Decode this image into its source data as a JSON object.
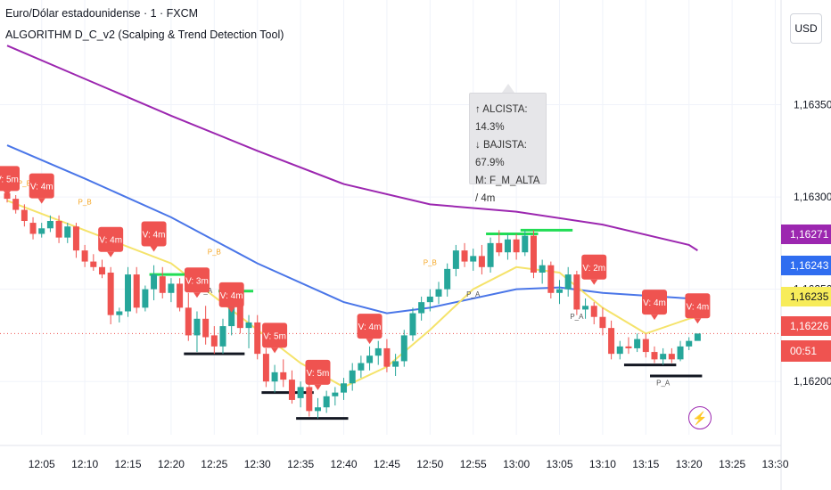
{
  "header": {
    "symbol_title": "Euro/Dólar estadounidense · 1 · FXCM",
    "indicator_title": "ALGORITHM D_C_v2 (Scalping & Trend Detection Tool)",
    "currency_button": "USD"
  },
  "tooltip": {
    "line1": "↑ ALCISTA: 14.3%",
    "line2": "↓ BAJISTA: 67.9%",
    "line3": "M: F_M_ALTA / 4m"
  },
  "chart_data": {
    "type": "candlestick",
    "symbol": "EUR/USD",
    "timeframe": "1",
    "x_ticks": [
      "12:05",
      "12:10",
      "12:15",
      "12:20",
      "12:25",
      "12:30",
      "12:35",
      "12:40",
      "12:45",
      "12:50",
      "12:55",
      "13:00",
      "13:05",
      "13:10",
      "13:15",
      "13:20",
      "13:25",
      "13:30"
    ],
    "y_ticks": [
      "1,16350",
      "1,16300",
      "1,16250",
      "1,16200"
    ],
    "ylim": [
      1.16175,
      1.16385
    ],
    "candles": [
      {
        "t": "12:01",
        "o": 1.16302,
        "h": 1.16306,
        "l": 1.16297,
        "c": 1.16299
      },
      {
        "t": "12:02",
        "o": 1.16299,
        "h": 1.16301,
        "l": 1.16291,
        "c": 1.16293
      },
      {
        "t": "12:03",
        "o": 1.16293,
        "h": 1.16296,
        "l": 1.16284,
        "c": 1.16287
      },
      {
        "t": "12:04",
        "o": 1.16286,
        "h": 1.16289,
        "l": 1.16277,
        "c": 1.1628
      },
      {
        "t": "12:05",
        "o": 1.1628,
        "h": 1.16286,
        "l": 1.16278,
        "c": 1.16283
      },
      {
        "t": "12:06",
        "o": 1.16283,
        "h": 1.1629,
        "l": 1.16281,
        "c": 1.16287
      },
      {
        "t": "12:07",
        "o": 1.16287,
        "h": 1.1629,
        "l": 1.16275,
        "c": 1.16278
      },
      {
        "t": "12:08",
        "o": 1.16278,
        "h": 1.16286,
        "l": 1.16275,
        "c": 1.16284
      },
      {
        "t": "12:09",
        "o": 1.16284,
        "h": 1.16286,
        "l": 1.16267,
        "c": 1.16271
      },
      {
        "t": "12:10",
        "o": 1.16271,
        "h": 1.16274,
        "l": 1.16262,
        "c": 1.16265
      },
      {
        "t": "12:11",
        "o": 1.16265,
        "h": 1.16269,
        "l": 1.1626,
        "c": 1.16262
      },
      {
        "t": "12:12",
        "o": 1.16262,
        "h": 1.16266,
        "l": 1.16256,
        "c": 1.16258
      },
      {
        "t": "12:13",
        "o": 1.16259,
        "h": 1.16262,
        "l": 1.16231,
        "c": 1.16236
      },
      {
        "t": "12:14",
        "o": 1.16236,
        "h": 1.1624,
        "l": 1.16232,
        "c": 1.16238
      },
      {
        "t": "12:15",
        "o": 1.16238,
        "h": 1.16262,
        "l": 1.16235,
        "c": 1.16258
      },
      {
        "t": "12:16",
        "o": 1.16258,
        "h": 1.16262,
        "l": 1.16237,
        "c": 1.1624
      },
      {
        "t": "12:17",
        "o": 1.1624,
        "h": 1.16252,
        "l": 1.16238,
        "c": 1.1625
      },
      {
        "t": "12:18",
        "o": 1.1625,
        "h": 1.16263,
        "l": 1.16244,
        "c": 1.16258
      },
      {
        "t": "12:19",
        "o": 1.16257,
        "h": 1.16262,
        "l": 1.16245,
        "c": 1.16248
      },
      {
        "t": "12:20",
        "o": 1.16248,
        "h": 1.16256,
        "l": 1.16243,
        "c": 1.16253
      },
      {
        "t": "12:21",
        "o": 1.16253,
        "h": 1.16256,
        "l": 1.16238,
        "c": 1.1624
      },
      {
        "t": "12:22",
        "o": 1.1624,
        "h": 1.16248,
        "l": 1.16222,
        "c": 1.16225
      },
      {
        "t": "12:23",
        "o": 1.16225,
        "h": 1.16238,
        "l": 1.16216,
        "c": 1.16234
      },
      {
        "t": "12:24",
        "o": 1.16234,
        "h": 1.16241,
        "l": 1.1622,
        "c": 1.16224
      },
      {
        "t": "12:25",
        "o": 1.16225,
        "h": 1.1623,
        "l": 1.16215,
        "c": 1.16219
      },
      {
        "t": "12:26",
        "o": 1.16219,
        "h": 1.16234,
        "l": 1.16215,
        "c": 1.1623
      },
      {
        "t": "12:27",
        "o": 1.1623,
        "h": 1.16248,
        "l": 1.16225,
        "c": 1.16245
      },
      {
        "t": "12:28",
        "o": 1.16245,
        "h": 1.16249,
        "l": 1.16226,
        "c": 1.16229
      },
      {
        "t": "12:29",
        "o": 1.16229,
        "h": 1.16236,
        "l": 1.16218,
        "c": 1.16232
      },
      {
        "t": "12:30",
        "o": 1.16232,
        "h": 1.16236,
        "l": 1.16212,
        "c": 1.16215
      },
      {
        "t": "12:31",
        "o": 1.16215,
        "h": 1.16218,
        "l": 1.16197,
        "c": 1.162
      },
      {
        "t": "12:32",
        "o": 1.162,
        "h": 1.16209,
        "l": 1.16194,
        "c": 1.16205
      },
      {
        "t": "12:33",
        "o": 1.16205,
        "h": 1.16212,
        "l": 1.16197,
        "c": 1.16201
      },
      {
        "t": "12:34",
        "o": 1.16201,
        "h": 1.16206,
        "l": 1.16188,
        "c": 1.1619
      },
      {
        "t": "12:35",
        "o": 1.16191,
        "h": 1.162,
        "l": 1.16186,
        "c": 1.16197
      },
      {
        "t": "12:36",
        "o": 1.16197,
        "h": 1.16199,
        "l": 1.16181,
        "c": 1.16184
      },
      {
        "t": "12:37",
        "o": 1.16184,
        "h": 1.16191,
        "l": 1.1618,
        "c": 1.16186
      },
      {
        "t": "12:38",
        "o": 1.16186,
        "h": 1.16195,
        "l": 1.16183,
        "c": 1.16192
      },
      {
        "t": "12:39",
        "o": 1.16192,
        "h": 1.16197,
        "l": 1.16187,
        "c": 1.16194
      },
      {
        "t": "12:40",
        "o": 1.16194,
        "h": 1.16202,
        "l": 1.1619,
        "c": 1.16199
      },
      {
        "t": "12:41",
        "o": 1.16199,
        "h": 1.1621,
        "l": 1.16195,
        "c": 1.16206
      },
      {
        "t": "12:42",
        "o": 1.16206,
        "h": 1.16214,
        "l": 1.16202,
        "c": 1.1621
      },
      {
        "t": "12:43",
        "o": 1.1621,
        "h": 1.16219,
        "l": 1.16206,
        "c": 1.16214
      },
      {
        "t": "12:44",
        "o": 1.16214,
        "h": 1.16222,
        "l": 1.16209,
        "c": 1.16218
      },
      {
        "t": "12:45",
        "o": 1.16218,
        "h": 1.16223,
        "l": 1.16205,
        "c": 1.16208
      },
      {
        "t": "12:46",
        "o": 1.16208,
        "h": 1.16215,
        "l": 1.16203,
        "c": 1.16211
      },
      {
        "t": "12:47",
        "o": 1.16211,
        "h": 1.16228,
        "l": 1.16208,
        "c": 1.16225
      },
      {
        "t": "12:48",
        "o": 1.16225,
        "h": 1.1624,
        "l": 1.16222,
        "c": 1.16237
      },
      {
        "t": "12:49",
        "o": 1.16237,
        "h": 1.16246,
        "l": 1.16233,
        "c": 1.16243
      },
      {
        "t": "12:50",
        "o": 1.16243,
        "h": 1.1625,
        "l": 1.16238,
        "c": 1.16246
      },
      {
        "t": "12:51",
        "o": 1.16246,
        "h": 1.16254,
        "l": 1.16242,
        "c": 1.1625
      },
      {
        "t": "12:52",
        "o": 1.1625,
        "h": 1.16264,
        "l": 1.16246,
        "c": 1.16261
      },
      {
        "t": "12:53",
        "o": 1.16261,
        "h": 1.16274,
        "l": 1.16257,
        "c": 1.16271
      },
      {
        "t": "12:54",
        "o": 1.16271,
        "h": 1.16275,
        "l": 1.16262,
        "c": 1.16265
      },
      {
        "t": "12:55",
        "o": 1.16265,
        "h": 1.16272,
        "l": 1.1626,
        "c": 1.16268
      },
      {
        "t": "12:56",
        "o": 1.16268,
        "h": 1.16274,
        "l": 1.16258,
        "c": 1.16262
      },
      {
        "t": "12:57",
        "o": 1.16262,
        "h": 1.16278,
        "l": 1.16259,
        "c": 1.16275
      },
      {
        "t": "12:58",
        "o": 1.16275,
        "h": 1.16282,
        "l": 1.16268,
        "c": 1.1627
      },
      {
        "t": "12:59",
        "o": 1.1627,
        "h": 1.1628,
        "l": 1.16266,
        "c": 1.16277
      },
      {
        "t": "13:00",
        "o": 1.16277,
        "h": 1.1628,
        "l": 1.16266,
        "c": 1.1627
      },
      {
        "t": "13:01",
        "o": 1.1627,
        "h": 1.16282,
        "l": 1.16268,
        "c": 1.16279
      },
      {
        "t": "13:02",
        "o": 1.16279,
        "h": 1.16282,
        "l": 1.16256,
        "c": 1.16259
      },
      {
        "t": "13:03",
        "o": 1.16259,
        "h": 1.16266,
        "l": 1.16253,
        "c": 1.16263
      },
      {
        "t": "13:04",
        "o": 1.16263,
        "h": 1.16265,
        "l": 1.16245,
        "c": 1.16248
      },
      {
        "t": "13:05",
        "o": 1.16248,
        "h": 1.16255,
        "l": 1.16242,
        "c": 1.1625
      },
      {
        "t": "13:06",
        "o": 1.1625,
        "h": 1.16262,
        "l": 1.16246,
        "c": 1.16258
      },
      {
        "t": "13:07",
        "o": 1.16258,
        "h": 1.1626,
        "l": 1.16236,
        "c": 1.16239
      },
      {
        "t": "13:08",
        "o": 1.16239,
        "h": 1.16245,
        "l": 1.16234,
        "c": 1.16241
      },
      {
        "t": "13:09",
        "o": 1.16241,
        "h": 1.16243,
        "l": 1.16231,
        "c": 1.16235
      },
      {
        "t": "13:10",
        "o": 1.16235,
        "h": 1.1624,
        "l": 1.16225,
        "c": 1.16229
      },
      {
        "t": "13:11",
        "o": 1.16229,
        "h": 1.16233,
        "l": 1.16212,
        "c": 1.16215
      },
      {
        "t": "13:12",
        "o": 1.16215,
        "h": 1.16222,
        "l": 1.16212,
        "c": 1.16219
      },
      {
        "t": "13:13",
        "o": 1.16219,
        "h": 1.16224,
        "l": 1.16215,
        "c": 1.16218
      },
      {
        "t": "13:14",
        "o": 1.16218,
        "h": 1.16226,
        "l": 1.16216,
        "c": 1.16223
      },
      {
        "t": "13:15",
        "o": 1.16223,
        "h": 1.16226,
        "l": 1.16213,
        "c": 1.16216
      },
      {
        "t": "13:16",
        "o": 1.16216,
        "h": 1.16219,
        "l": 1.1621,
        "c": 1.16212
      },
      {
        "t": "13:17",
        "o": 1.16212,
        "h": 1.16218,
        "l": 1.16209,
        "c": 1.16215
      },
      {
        "t": "13:18",
        "o": 1.16215,
        "h": 1.16218,
        "l": 1.1621,
        "c": 1.16212
      },
      {
        "t": "13:19",
        "o": 1.16212,
        "h": 1.16222,
        "l": 1.16211,
        "c": 1.16219
      },
      {
        "t": "13:20",
        "o": 1.16219,
        "h": 1.16224,
        "l": 1.16217,
        "c": 1.16222
      },
      {
        "t": "13:21",
        "o": 1.16222,
        "h": 1.16224,
        "l": 1.16224,
        "c": 1.16226
      }
    ],
    "lines": [
      {
        "color": "#9c27b0",
        "points": [
          [
            "12:01",
            1.16382
          ],
          [
            "12:10",
            1.16364
          ],
          [
            "12:20",
            1.16344
          ],
          [
            "12:30",
            1.16325
          ],
          [
            "12:40",
            1.16307
          ],
          [
            "12:50",
            1.16296
          ],
          [
            "13:00",
            1.16292
          ],
          [
            "13:10",
            1.16285
          ],
          [
            "13:20",
            1.16274
          ],
          [
            "13:21",
            1.16271
          ]
        ]
      },
      {
        "color": "#4a76e8",
        "points": [
          [
            "12:01",
            1.16328
          ],
          [
            "12:10",
            1.1631
          ],
          [
            "12:20",
            1.16289
          ],
          [
            "12:30",
            1.16264
          ],
          [
            "12:40",
            1.16243
          ],
          [
            "12:45",
            1.16237
          ],
          [
            "12:50",
            1.1624
          ],
          [
            "13:00",
            1.1625
          ],
          [
            "13:05",
            1.16251
          ],
          [
            "13:10",
            1.16248
          ],
          [
            "13:20",
            1.16245
          ],
          [
            "13:21",
            1.16243
          ]
        ]
      },
      {
        "color": "#f5e36b",
        "points": [
          [
            "12:01",
            1.16298
          ],
          [
            "12:10",
            1.16282
          ],
          [
            "12:20",
            1.16264
          ],
          [
            "12:25",
            1.16246
          ],
          [
            "12:30",
            1.16228
          ],
          [
            "12:35",
            1.1621
          ],
          [
            "12:40",
            1.16197
          ],
          [
            "12:45",
            1.16208
          ],
          [
            "12:50",
            1.16228
          ],
          [
            "12:55",
            1.1625
          ],
          [
            "13:00",
            1.16262
          ],
          [
            "13:05",
            1.16259
          ],
          [
            "13:10",
            1.1624
          ],
          [
            "13:15",
            1.16226
          ],
          [
            "13:20",
            1.16234
          ],
          [
            "13:21",
            1.16235
          ]
        ]
      }
    ],
    "signal_labels": [
      {
        "t": "12:01",
        "y": 1.1631,
        "text": "V: 5m"
      },
      {
        "t": "12:05",
        "y": 1.16306,
        "text": "V: 4m"
      },
      {
        "t": "12:13",
        "y": 1.16277,
        "text": "V: 4m"
      },
      {
        "t": "12:18",
        "y": 1.1628,
        "text": "V: 4m"
      },
      {
        "t": "12:23",
        "y": 1.16255,
        "text": "V: 3m"
      },
      {
        "t": "12:27",
        "y": 1.16247,
        "text": "V: 4m"
      },
      {
        "t": "12:32",
        "y": 1.16225,
        "text": "V: 5m"
      },
      {
        "t": "12:37",
        "y": 1.16205,
        "text": "V: 5m"
      },
      {
        "t": "12:43",
        "y": 1.1623,
        "text": "V: 4m"
      },
      {
        "t": "13:09",
        "y": 1.16262,
        "text": "V: 2m"
      },
      {
        "t": "13:16",
        "y": 1.16243,
        "text": "V: 4m"
      },
      {
        "t": "13:21",
        "y": 1.16241,
        "text": "V: 4m"
      }
    ],
    "small_labels": [
      {
        "t": "12:03",
        "y": 1.16306,
        "text": "P_B",
        "color": "#f5a623"
      },
      {
        "t": "12:10",
        "y": 1.16296,
        "text": "P_B",
        "color": "#f5a623"
      },
      {
        "t": "12:25",
        "y": 1.16269,
        "text": "P_B",
        "color": "#f5a623"
      },
      {
        "t": "12:24",
        "y": 1.16248,
        "text": "P_A",
        "color": "#555555"
      },
      {
        "t": "12:50",
        "y": 1.16263,
        "text": "P_B",
        "color": "#f5a623"
      },
      {
        "t": "12:55",
        "y": 1.16246,
        "text": "P_A",
        "color": "#555555"
      },
      {
        "t": "13:07",
        "y": 1.16234,
        "text": "P_A",
        "color": "#555555"
      },
      {
        "t": "13:17",
        "y": 1.16198,
        "text": "P_A",
        "color": "#555555"
      }
    ],
    "h_levels": [
      {
        "t1": "12:18",
        "t2": "12:22",
        "y": 1.16258,
        "color": "#22dd55"
      },
      {
        "t1": "12:26",
        "t2": "12:29",
        "y": 1.16249,
        "color": "#22dd55"
      },
      {
        "t1": "12:57",
        "t2": "13:02",
        "y": 1.1628,
        "color": "#22dd55"
      },
      {
        "t1": "13:01",
        "t2": "13:06",
        "y": 1.16282,
        "color": "#22dd55"
      },
      {
        "t1": "12:22",
        "t2": "12:28",
        "y": 1.16215,
        "color": "#131722"
      },
      {
        "t1": "12:31",
        "t2": "12:36",
        "y": 1.16194,
        "color": "#131722"
      },
      {
        "t1": "12:35",
        "t2": "12:40",
        "y": 1.1618,
        "color": "#131722"
      },
      {
        "t1": "13:13",
        "t2": "13:18",
        "y": 1.16209,
        "color": "#131722"
      },
      {
        "t1": "13:16",
        "t2": "13:21",
        "y": 1.16203,
        "color": "#131722"
      }
    ],
    "current_price_line": 1.16226,
    "price_tags": [
      {
        "label": "1,16271",
        "color": "#9c27b0"
      },
      {
        "label": "1,16243",
        "color": "#2f6df0"
      },
      {
        "label": "1,16235",
        "color": "#f7ec5a",
        "text_color": "#131722"
      },
      {
        "label": "1,16226",
        "color": "#ef5350"
      },
      {
        "label": "00:51",
        "color": "#ef5350"
      }
    ],
    "colors": {
      "up": "#26a69a",
      "down": "#ef5350",
      "grid": "#f0f3fa",
      "signal": "#ef5350"
    }
  }
}
